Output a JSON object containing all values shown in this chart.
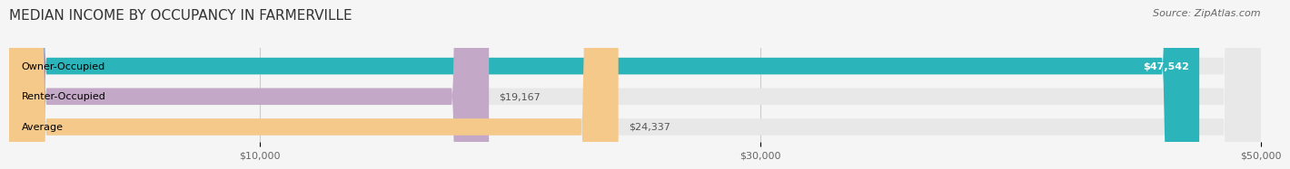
{
  "title": "MEDIAN INCOME BY OCCUPANCY IN FARMERVILLE",
  "source": "Source: ZipAtlas.com",
  "categories": [
    "Owner-Occupied",
    "Renter-Occupied",
    "Average"
  ],
  "values": [
    47542,
    19167,
    24337
  ],
  "bar_colors": [
    "#2bb5bb",
    "#c4a8c8",
    "#f5c98a"
  ],
  "bar_labels": [
    "$47,542",
    "$19,167",
    "$24,337"
  ],
  "xlim": [
    0,
    50000
  ],
  "xticks": [
    10000,
    30000,
    50000
  ],
  "xticklabels": [
    "$10,000",
    "$30,000",
    "$50,000"
  ],
  "background_color": "#f5f5f5",
  "bar_background_color": "#e8e8e8",
  "title_fontsize": 11,
  "source_fontsize": 8,
  "label_fontsize": 8,
  "tick_fontsize": 8
}
